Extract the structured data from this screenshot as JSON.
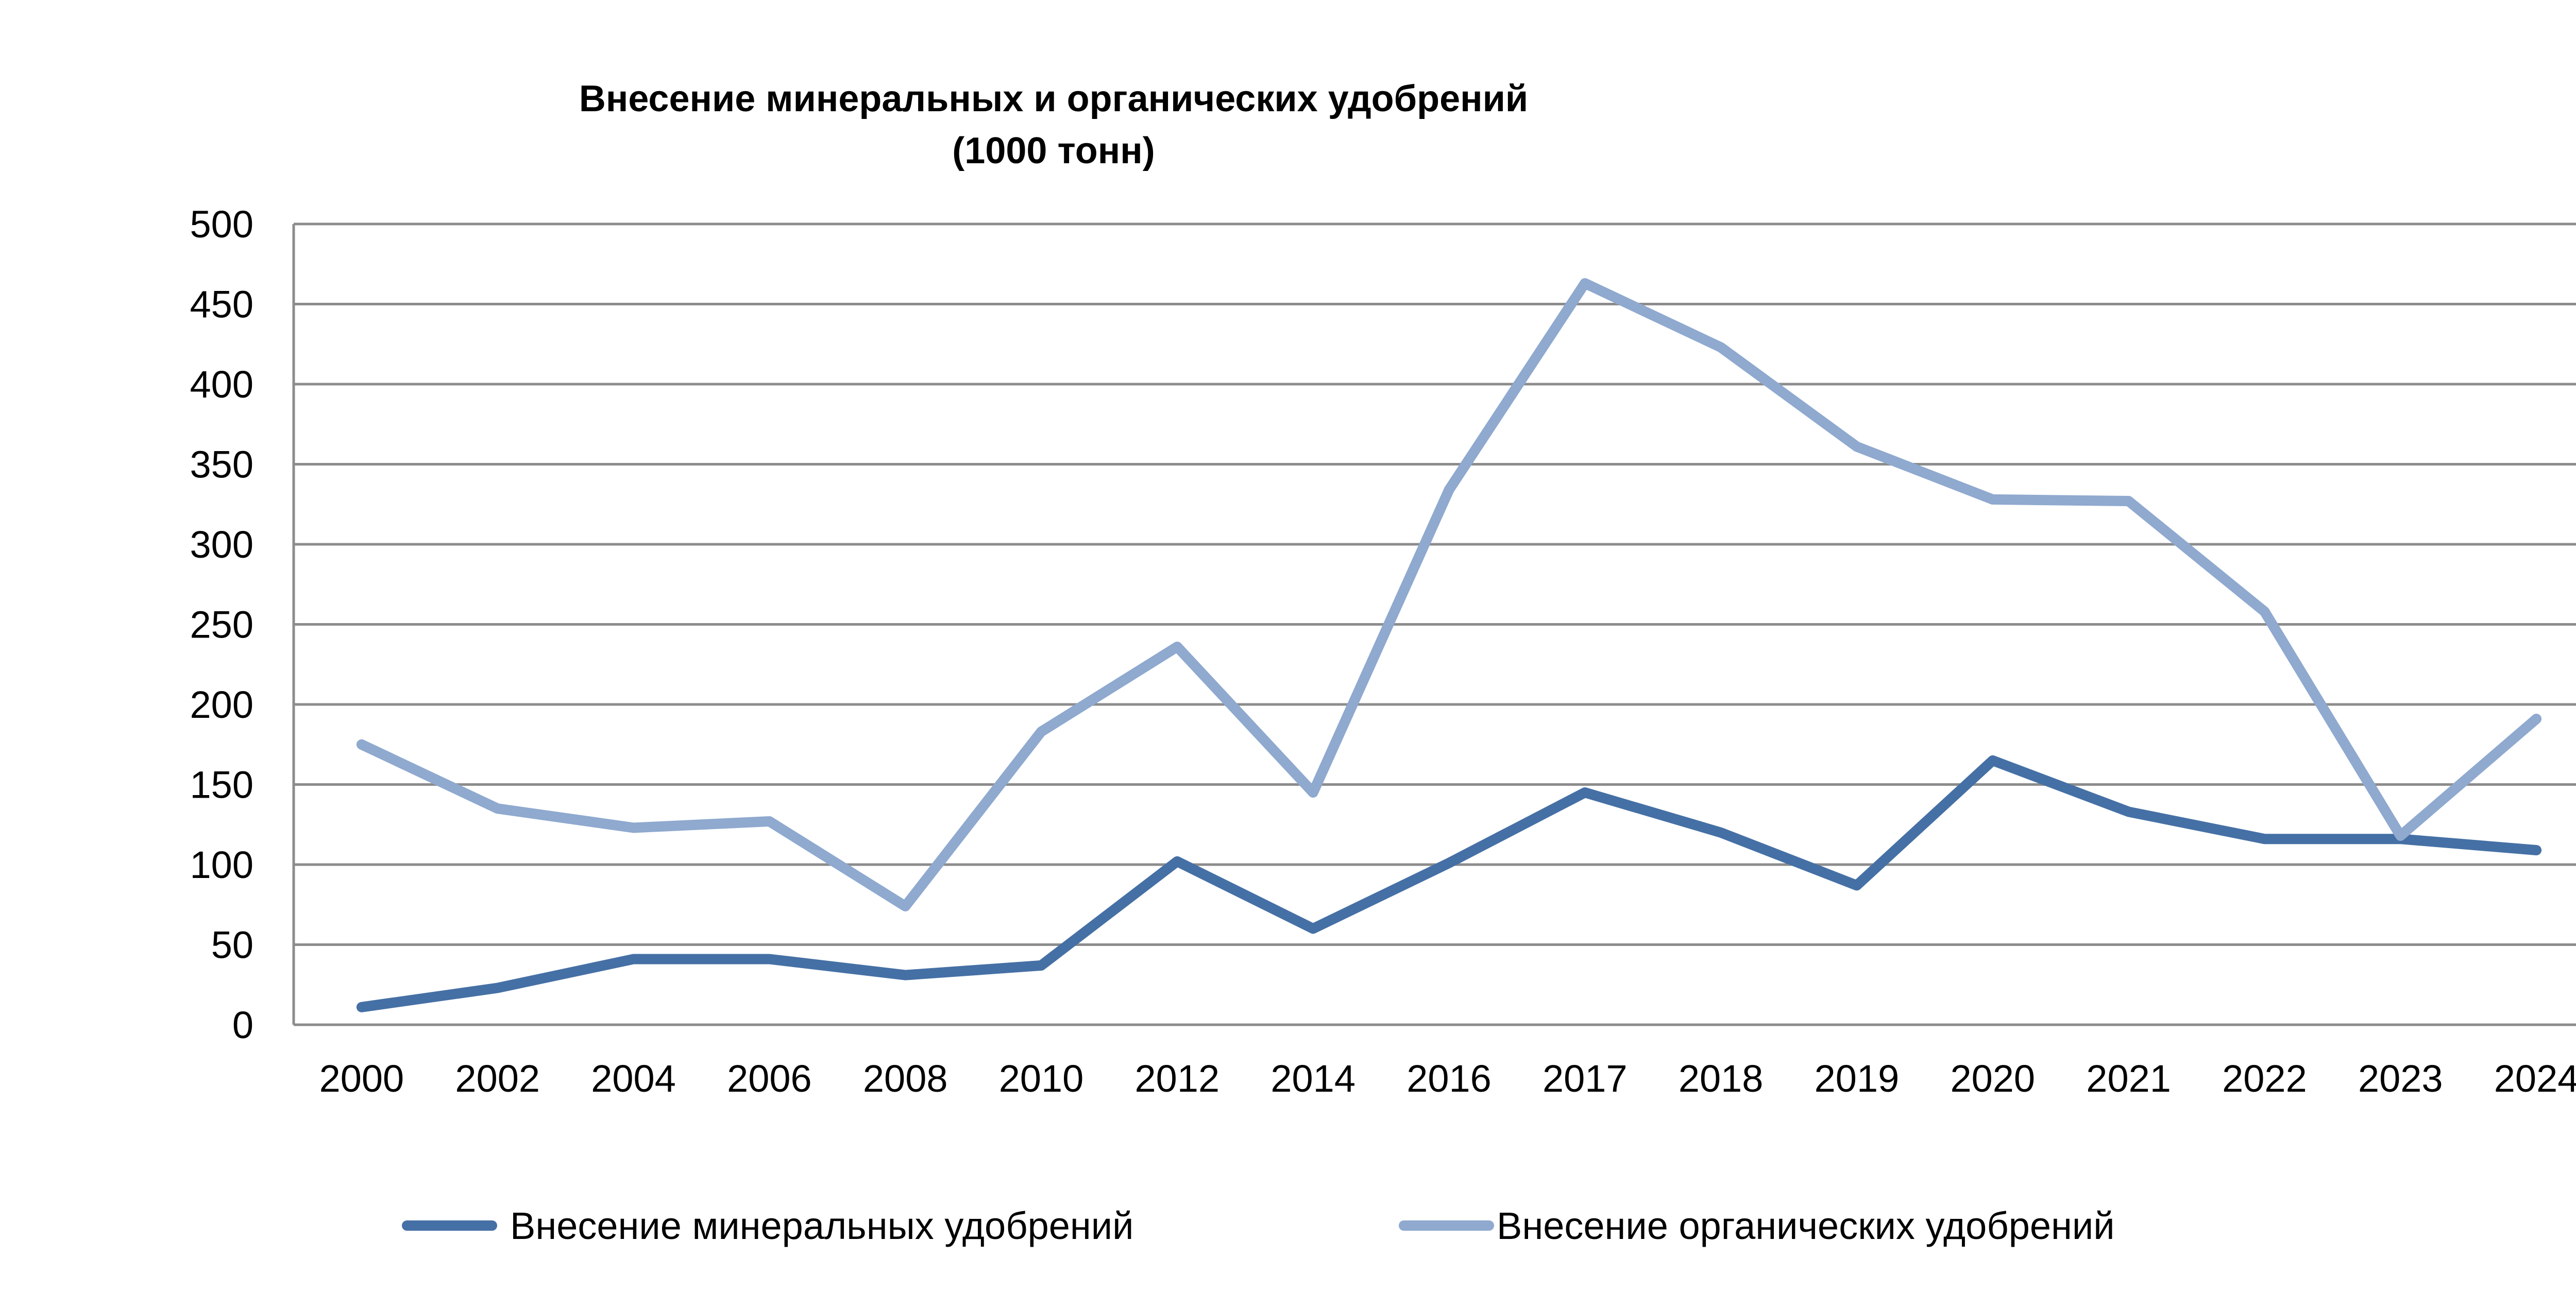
{
  "chart_data": {
    "type": "line",
    "title": "Внесение минеральных и  органических удобрений",
    "subtitle": "(1000 тонн)",
    "xlabel": "",
    "ylabel": "",
    "categories": [
      "2000",
      "2002",
      "2004",
      "2006",
      "2008",
      "2010",
      "2012",
      "2014",
      "2016",
      "2017",
      "2018",
      "2019",
      "2020",
      "2021",
      "2022",
      "2023",
      "2024"
    ],
    "ylim": [
      0,
      500
    ],
    "yticks": [
      0,
      50,
      100,
      150,
      200,
      250,
      300,
      350,
      400,
      450,
      500
    ],
    "grid": true,
    "legend_position": "bottom",
    "series": [
      {
        "name": "Внесение минеральных удобрений",
        "color": "#4570a5",
        "values": [
          11,
          23,
          41,
          41,
          31,
          37,
          102,
          60,
          101,
          145,
          120,
          87,
          165,
          133,
          116,
          116,
          109
        ]
      },
      {
        "name": "Внесение органических удобрений",
        "color": "#8fa9cf",
        "values": [
          175,
          135,
          123,
          127,
          74,
          183,
          236,
          145,
          334,
          463,
          423,
          361,
          328,
          327,
          258,
          118,
          191
        ]
      }
    ],
    "colors": {
      "gridline": "#8c8c8c",
      "axis": "#8c8c8c",
      "text": "#000000"
    }
  }
}
